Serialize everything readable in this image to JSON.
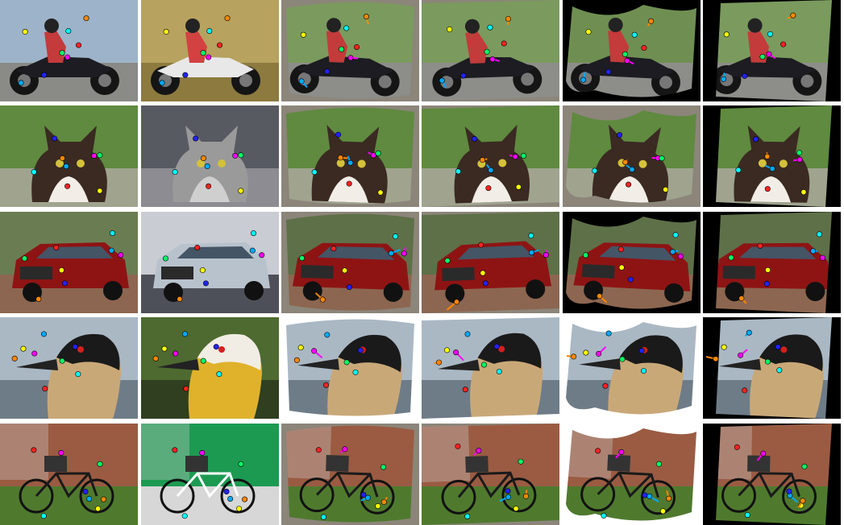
{
  "rows": [
    {
      "subject": "motorcycle",
      "cells": [
        {
          "kind": "source",
          "bg": "#9db3c9",
          "ground": "#8a8a86",
          "accent": "#1c1c22",
          "detail": "#c33b3b",
          "fill": "none"
        },
        {
          "kind": "target",
          "bg": "#b7a25f",
          "ground": "#8c7a3f",
          "accent": "#e8e8e8",
          "detail": "#d44141",
          "fill": "none"
        },
        {
          "kind": "warp",
          "bg": "#7b9a5e",
          "ground": "#8d8d89",
          "accent": "#1c1c22",
          "detail": "#c33b3b",
          "fill": "#8c857a"
        },
        {
          "kind": "warp",
          "bg": "#7b9a5e",
          "ground": "#8d8d89",
          "accent": "#1c1c22",
          "detail": "#c33b3b",
          "fill": "#8c857a"
        },
        {
          "kind": "warp",
          "bg": "#6f8f52",
          "ground": "#8d8d89",
          "accent": "#1c1c22",
          "detail": "#c33b3b",
          "fill": "#000000"
        },
        {
          "kind": "warp",
          "bg": "#7b9a5e",
          "ground": "#8d8d89",
          "accent": "#1c1c22",
          "detail": "#c33b3b",
          "fill": "#000000"
        }
      ]
    },
    {
      "subject": "cat",
      "cells": [
        {
          "kind": "source",
          "bg": "#5f8a3f",
          "ground": "#a0a48f",
          "accent": "#3a2a22",
          "detail": "#f2ede6",
          "fill": "none"
        },
        {
          "kind": "target",
          "bg": "#585a62",
          "ground": "#8c8c92",
          "accent": "#9a9a9a",
          "detail": "#cfcfcf",
          "fill": "none"
        },
        {
          "kind": "warp",
          "bg": "#5f8a3f",
          "ground": "#a0a48f",
          "accent": "#3a2a22",
          "detail": "#f2ede6",
          "fill": "#8c857a"
        },
        {
          "kind": "warp",
          "bg": "#5f8a3f",
          "ground": "#a0a48f",
          "accent": "#3a2a22",
          "detail": "#f2ede6",
          "fill": "#8c857a"
        },
        {
          "kind": "warp",
          "bg": "#5f8a3f",
          "ground": "#a0a48f",
          "accent": "#3a2a22",
          "detail": "#f2ede6",
          "fill": "#8c857a"
        },
        {
          "kind": "warp",
          "bg": "#5f8a3f",
          "ground": "#a0a48f",
          "accent": "#3a2a22",
          "detail": "#f2ede6",
          "fill": "#000000"
        }
      ]
    },
    {
      "subject": "car",
      "cells": [
        {
          "kind": "source",
          "bg": "#6a7d52",
          "ground": "#8c6650",
          "accent": "#8e1414",
          "detail": "#2a2a2a",
          "fill": "none"
        },
        {
          "kind": "target",
          "bg": "#c9ccd2",
          "ground": "#4e5059",
          "accent": "#b7c2cc",
          "detail": "#2a2a2a",
          "fill": "none"
        },
        {
          "kind": "warp",
          "bg": "#5e7048",
          "ground": "#8c6650",
          "accent": "#8e1414",
          "detail": "#2a2a2a",
          "fill": "#8c857a"
        },
        {
          "kind": "warp",
          "bg": "#5e7048",
          "ground": "#8c6650",
          "accent": "#8e1414",
          "detail": "#2a2a2a",
          "fill": "#8c857a"
        },
        {
          "kind": "warp",
          "bg": "#5e7048",
          "ground": "#8c6650",
          "accent": "#8e1414",
          "detail": "#2a2a2a",
          "fill": "#000000"
        },
        {
          "kind": "warp",
          "bg": "#5e7048",
          "ground": "#8c6650",
          "accent": "#8e1414",
          "detail": "#2a2a2a",
          "fill": "#000000"
        }
      ]
    },
    {
      "subject": "bird",
      "cells": [
        {
          "kind": "source",
          "bg": "#aab8c4",
          "ground": "#6e7c88",
          "accent": "#1a1a1a",
          "detail": "#c9a878",
          "fill": "none"
        },
        {
          "kind": "target",
          "bg": "#4e6a30",
          "ground": "#2f3f1f",
          "accent": "#f1ede4",
          "detail": "#e0b22c",
          "fill": "none"
        },
        {
          "kind": "warp",
          "bg": "#aab8c4",
          "ground": "#6e7c88",
          "accent": "#1a1a1a",
          "detail": "#c9a878",
          "fill": "#ffffff"
        },
        {
          "kind": "warp",
          "bg": "#aab8c4",
          "ground": "#6e7c88",
          "accent": "#1a1a1a",
          "detail": "#c9a878",
          "fill": "#ffffff"
        },
        {
          "kind": "warp",
          "bg": "#aab8c4",
          "ground": "#6e7c88",
          "accent": "#1a1a1a",
          "detail": "#c9a878",
          "fill": "#ffffff"
        },
        {
          "kind": "warp",
          "bg": "#aab8c4",
          "ground": "#6e7c88",
          "accent": "#1a1a1a",
          "detail": "#c9a878",
          "fill": "#000000"
        }
      ]
    },
    {
      "subject": "bicycle",
      "cells": [
        {
          "kind": "source",
          "bg": "#9a5b42",
          "ground": "#4f7a2e",
          "accent": "#1a1a1a",
          "detail": "#7a7a7a",
          "fill": "none"
        },
        {
          "kind": "target",
          "bg": "#1d9a52",
          "ground": "#d7d7d7",
          "accent": "#ffffff",
          "detail": "#c73057",
          "fill": "none"
        },
        {
          "kind": "warp",
          "bg": "#9a5b42",
          "ground": "#4f7a2e",
          "accent": "#1a1a1a",
          "detail": "#7a7a7a",
          "fill": "#8c857a"
        },
        {
          "kind": "warp",
          "bg": "#9a5b42",
          "ground": "#4f7a2e",
          "accent": "#1a1a1a",
          "detail": "#7a7a7a",
          "fill": "#8c857a"
        },
        {
          "kind": "warp",
          "bg": "#9a5b42",
          "ground": "#4f7a2e",
          "accent": "#1a1a1a",
          "detail": "#7a7a7a",
          "fill": "#ffffff"
        },
        {
          "kind": "warp",
          "bg": "#9a5b42",
          "ground": "#4f7a2e",
          "accent": "#1a1a1a",
          "detail": "#7a7a7a",
          "fill": "#000000"
        }
      ]
    }
  ],
  "keypoint_colors": [
    "#ff00ff",
    "#ffff00",
    "#00ff66",
    "#00aaff",
    "#ff2222",
    "#2222ff",
    "#ff8800",
    "#00ffff"
  ]
}
